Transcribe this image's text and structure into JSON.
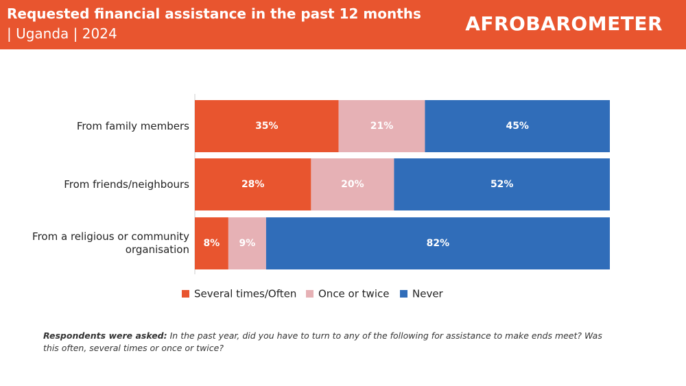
{
  "chart_data": {
    "type": "bar",
    "orientation": "horizontal",
    "stacked": "percent",
    "title": "Requested financial assistance in the past 12 months",
    "subtitle": "| Uganda | 2024",
    "logo": "AFROBAROMETER",
    "categories": [
      "From family members",
      "From friends/neighbours",
      "From a religious or community organisation"
    ],
    "series": [
      {
        "name": "Several times/Often",
        "color": "#e8552f",
        "values": [
          35,
          28,
          8
        ],
        "value_labels": [
          "35%",
          "28%",
          "8%"
        ]
      },
      {
        "name": "Once or twice",
        "color": "#e6b1b5",
        "values": [
          21,
          20,
          9
        ],
        "value_labels": [
          "21%",
          "20%",
          "9%"
        ]
      },
      {
        "name": "Never",
        "color": "#306db9",
        "values": [
          45,
          52,
          82
        ],
        "value_labels": [
          "45%",
          "52%",
          "82%"
        ]
      }
    ],
    "note_label": "Respondents were asked:",
    "note_text": "In the past year, did you have to turn to any of the following for assistance to make ends meet? Was this often, several times or once or twice?"
  }
}
